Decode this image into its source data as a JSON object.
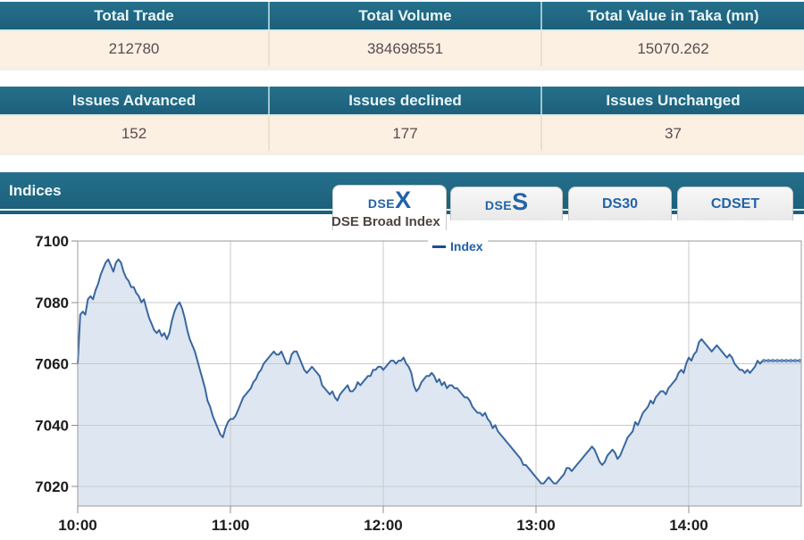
{
  "summary_tables": [
    {
      "columns": [
        {
          "header": "Total Trade",
          "value": "212780"
        },
        {
          "header": "Total Volume",
          "value": "384698551"
        },
        {
          "header": "Total Value in Taka (mn)",
          "value": "15070.262"
        }
      ]
    },
    {
      "columns": [
        {
          "header": "Issues Advanced",
          "value": "152"
        },
        {
          "header": "Issues declined",
          "value": "177"
        },
        {
          "header": "Issues Unchanged",
          "value": "37"
        }
      ]
    }
  ],
  "indices_section": {
    "title": "Indices",
    "tabs": [
      {
        "prefix": "DSE",
        "suffix": "X",
        "active": true
      },
      {
        "prefix": "DSE",
        "suffix": "S",
        "active": false
      },
      {
        "label": "DS30",
        "active": false
      },
      {
        "label": "CDSET",
        "active": false
      }
    ]
  },
  "chart": {
    "title": "DSE Broad Index",
    "legend_label": "Index"
  },
  "chart_data": {
    "type": "area",
    "title": "DSE Broad Index",
    "legend": [
      "Index"
    ],
    "x_axis": {
      "ticks": [
        {
          "t": 0,
          "label": "10:00"
        },
        {
          "t": 60,
          "label": "11:00"
        },
        {
          "t": 120,
          "label": "12:00"
        },
        {
          "t": 180,
          "label": "13:00"
        },
        {
          "t": 240,
          "label": "14:00"
        }
      ],
      "range_minutes": [
        0,
        284
      ]
    },
    "y_axis": {
      "ticks": [
        7100,
        7080,
        7060,
        7040,
        7020
      ],
      "top": 7100,
      "bottom": 7013.6
    },
    "grid": true,
    "legend_position": "top-center",
    "flat_tail": {
      "from": 269,
      "to": 284,
      "value": 7061
    },
    "colors": {
      "line": "#39679f",
      "fill": "#dde6f1",
      "grid": "#c9c9c9",
      "border": "#9b9b9b",
      "tail": "#6a93c0",
      "label": "#1c1c1c"
    },
    "series": [
      {
        "name": "Index",
        "points": [
          [
            0,
            7060
          ],
          [
            1,
            7076
          ],
          [
            2,
            7077
          ],
          [
            3,
            7076
          ],
          [
            4,
            7081
          ],
          [
            5,
            7082
          ],
          [
            6,
            7081
          ],
          [
            7,
            7084
          ],
          [
            8,
            7086
          ],
          [
            9,
            7089
          ],
          [
            10,
            7091
          ],
          [
            11,
            7093
          ],
          [
            12,
            7094
          ],
          [
            13,
            7092
          ],
          [
            14,
            7090
          ],
          [
            15,
            7093
          ],
          [
            16,
            7094
          ],
          [
            17,
            7093
          ],
          [
            18,
            7090
          ],
          [
            19,
            7088
          ],
          [
            20,
            7087
          ],
          [
            21,
            7085
          ],
          [
            22,
            7085
          ],
          [
            23,
            7083
          ],
          [
            24,
            7082
          ],
          [
            25,
            7080
          ],
          [
            26,
            7081
          ],
          [
            27,
            7078
          ],
          [
            28,
            7075
          ],
          [
            29,
            7073
          ],
          [
            30,
            7071
          ],
          [
            31,
            7070
          ],
          [
            32,
            7071
          ],
          [
            33,
            7069
          ],
          [
            34,
            7070
          ],
          [
            35,
            7068
          ],
          [
            36,
            7070
          ],
          [
            37,
            7074
          ],
          [
            38,
            7077
          ],
          [
            39,
            7079
          ],
          [
            40,
            7080
          ],
          [
            41,
            7078
          ],
          [
            42,
            7075
          ],
          [
            43,
            7071
          ],
          [
            44,
            7068
          ],
          [
            45,
            7066
          ],
          [
            46,
            7064
          ],
          [
            47,
            7061
          ],
          [
            48,
            7058
          ],
          [
            49,
            7055
          ],
          [
            50,
            7052
          ],
          [
            51,
            7048
          ],
          [
            52,
            7046
          ],
          [
            53,
            7043
          ],
          [
            54,
            7041
          ],
          [
            55,
            7039
          ],
          [
            56,
            7037
          ],
          [
            57,
            7036
          ],
          [
            58,
            7039
          ],
          [
            59,
            7041
          ],
          [
            60,
            7042
          ],
          [
            61,
            7042
          ],
          [
            62,
            7043
          ],
          [
            63,
            7045
          ],
          [
            64,
            7047
          ],
          [
            65,
            7049
          ],
          [
            66,
            7050
          ],
          [
            67,
            7051
          ],
          [
            68,
            7052
          ],
          [
            69,
            7054
          ],
          [
            70,
            7055
          ],
          [
            71,
            7057
          ],
          [
            72,
            7058
          ],
          [
            73,
            7060
          ],
          [
            74,
            7061
          ],
          [
            75,
            7062
          ],
          [
            76,
            7063
          ],
          [
            77,
            7064
          ],
          [
            78,
            7063
          ],
          [
            79,
            7063
          ],
          [
            80,
            7064
          ],
          [
            81,
            7062
          ],
          [
            82,
            7060
          ],
          [
            83,
            7060
          ],
          [
            84,
            7063
          ],
          [
            85,
            7064
          ],
          [
            86,
            7064
          ],
          [
            87,
            7062
          ],
          [
            88,
            7060
          ],
          [
            89,
            7058
          ],
          [
            90,
            7057
          ],
          [
            91,
            7058
          ],
          [
            92,
            7059
          ],
          [
            93,
            7058
          ],
          [
            94,
            7057
          ],
          [
            95,
            7056
          ],
          [
            96,
            7053
          ],
          [
            97,
            7052
          ],
          [
            98,
            7051
          ],
          [
            99,
            7050
          ],
          [
            100,
            7051
          ],
          [
            101,
            7049
          ],
          [
            102,
            7048
          ],
          [
            103,
            7050
          ],
          [
            104,
            7051
          ],
          [
            105,
            7052
          ],
          [
            106,
            7053
          ],
          [
            107,
            7051
          ],
          [
            108,
            7051
          ],
          [
            109,
            7052
          ],
          [
            110,
            7054
          ],
          [
            111,
            7053
          ],
          [
            112,
            7054
          ],
          [
            113,
            7055
          ],
          [
            114,
            7056
          ],
          [
            115,
            7056
          ],
          [
            116,
            7058
          ],
          [
            117,
            7058
          ],
          [
            118,
            7059
          ],
          [
            119,
            7059
          ],
          [
            120,
            7058
          ],
          [
            121,
            7059
          ],
          [
            122,
            7060
          ],
          [
            123,
            7061
          ],
          [
            124,
            7061
          ],
          [
            125,
            7060
          ],
          [
            126,
            7061
          ],
          [
            127,
            7061
          ],
          [
            128,
            7062
          ],
          [
            129,
            7060
          ],
          [
            130,
            7059
          ],
          [
            131,
            7057
          ],
          [
            132,
            7053
          ],
          [
            133,
            7051
          ],
          [
            134,
            7052
          ],
          [
            135,
            7054
          ],
          [
            136,
            7055
          ],
          [
            137,
            7056
          ],
          [
            138,
            7056
          ],
          [
            139,
            7057
          ],
          [
            140,
            7056
          ],
          [
            141,
            7054
          ],
          [
            142,
            7055
          ],
          [
            143,
            7053
          ],
          [
            144,
            7054
          ],
          [
            145,
            7052
          ],
          [
            146,
            7053
          ],
          [
            147,
            7053
          ],
          [
            148,
            7052
          ],
          [
            149,
            7052
          ],
          [
            150,
            7051
          ],
          [
            151,
            7050
          ],
          [
            152,
            7049
          ],
          [
            153,
            7049
          ],
          [
            154,
            7048
          ],
          [
            155,
            7046
          ],
          [
            156,
            7045
          ],
          [
            157,
            7044
          ],
          [
            158,
            7044
          ],
          [
            159,
            7043
          ],
          [
            160,
            7044
          ],
          [
            161,
            7042
          ],
          [
            162,
            7041
          ],
          [
            163,
            7039
          ],
          [
            164,
            7040
          ],
          [
            165,
            7038
          ],
          [
            166,
            7037
          ],
          [
            167,
            7036
          ],
          [
            168,
            7035
          ],
          [
            169,
            7034
          ],
          [
            170,
            7033
          ],
          [
            171,
            7032
          ],
          [
            172,
            7031
          ],
          [
            173,
            7030
          ],
          [
            174,
            7029
          ],
          [
            175,
            7027
          ],
          [
            176,
            7027
          ],
          [
            177,
            7026
          ],
          [
            178,
            7025
          ],
          [
            179,
            7024
          ],
          [
            180,
            7023
          ],
          [
            181,
            7022
          ],
          [
            182,
            7021
          ],
          [
            183,
            7021
          ],
          [
            184,
            7022
          ],
          [
            185,
            7023
          ],
          [
            186,
            7022
          ],
          [
            187,
            7021
          ],
          [
            188,
            7021
          ],
          [
            189,
            7022
          ],
          [
            190,
            7023
          ],
          [
            191,
            7024
          ],
          [
            192,
            7026
          ],
          [
            193,
            7026
          ],
          [
            194,
            7025
          ],
          [
            195,
            7026
          ],
          [
            196,
            7027
          ],
          [
            197,
            7028
          ],
          [
            198,
            7029
          ],
          [
            199,
            7030
          ],
          [
            200,
            7031
          ],
          [
            201,
            7032
          ],
          [
            202,
            7033
          ],
          [
            203,
            7032
          ],
          [
            204,
            7030
          ],
          [
            205,
            7028
          ],
          [
            206,
            7027
          ],
          [
            207,
            7028
          ],
          [
            208,
            7030
          ],
          [
            209,
            7031
          ],
          [
            210,
            7032
          ],
          [
            211,
            7031
          ],
          [
            212,
            7029
          ],
          [
            213,
            7030
          ],
          [
            214,
            7032
          ],
          [
            215,
            7034
          ],
          [
            216,
            7036
          ],
          [
            217,
            7037
          ],
          [
            218,
            7038
          ],
          [
            219,
            7041
          ],
          [
            220,
            7040
          ],
          [
            221,
            7042
          ],
          [
            222,
            7044
          ],
          [
            223,
            7045
          ],
          [
            224,
            7046
          ],
          [
            225,
            7048
          ],
          [
            226,
            7047
          ],
          [
            227,
            7049
          ],
          [
            228,
            7050
          ],
          [
            229,
            7051
          ],
          [
            230,
            7051
          ],
          [
            231,
            7050
          ],
          [
            232,
            7052
          ],
          [
            233,
            7053
          ],
          [
            234,
            7054
          ],
          [
            235,
            7055
          ],
          [
            236,
            7057
          ],
          [
            237,
            7058
          ],
          [
            238,
            7057
          ],
          [
            239,
            7060
          ],
          [
            240,
            7062
          ],
          [
            241,
            7061
          ],
          [
            242,
            7063
          ],
          [
            243,
            7064
          ],
          [
            244,
            7067
          ],
          [
            245,
            7068
          ],
          [
            246,
            7067
          ],
          [
            247,
            7066
          ],
          [
            248,
            7065
          ],
          [
            249,
            7064
          ],
          [
            250,
            7065
          ],
          [
            251,
            7066
          ],
          [
            252,
            7065
          ],
          [
            253,
            7064
          ],
          [
            254,
            7063
          ],
          [
            255,
            7062
          ],
          [
            256,
            7063
          ],
          [
            257,
            7062
          ],
          [
            258,
            7060
          ],
          [
            259,
            7059
          ],
          [
            260,
            7058
          ],
          [
            261,
            7058
          ],
          [
            262,
            7057
          ],
          [
            263,
            7058
          ],
          [
            264,
            7057
          ],
          [
            265,
            7058
          ],
          [
            266,
            7059
          ],
          [
            267,
            7061
          ],
          [
            268,
            7060
          ],
          [
            269,
            7061
          ],
          [
            272,
            7061
          ],
          [
            276,
            7061
          ],
          [
            280,
            7061
          ],
          [
            284,
            7061
          ]
        ]
      }
    ]
  }
}
